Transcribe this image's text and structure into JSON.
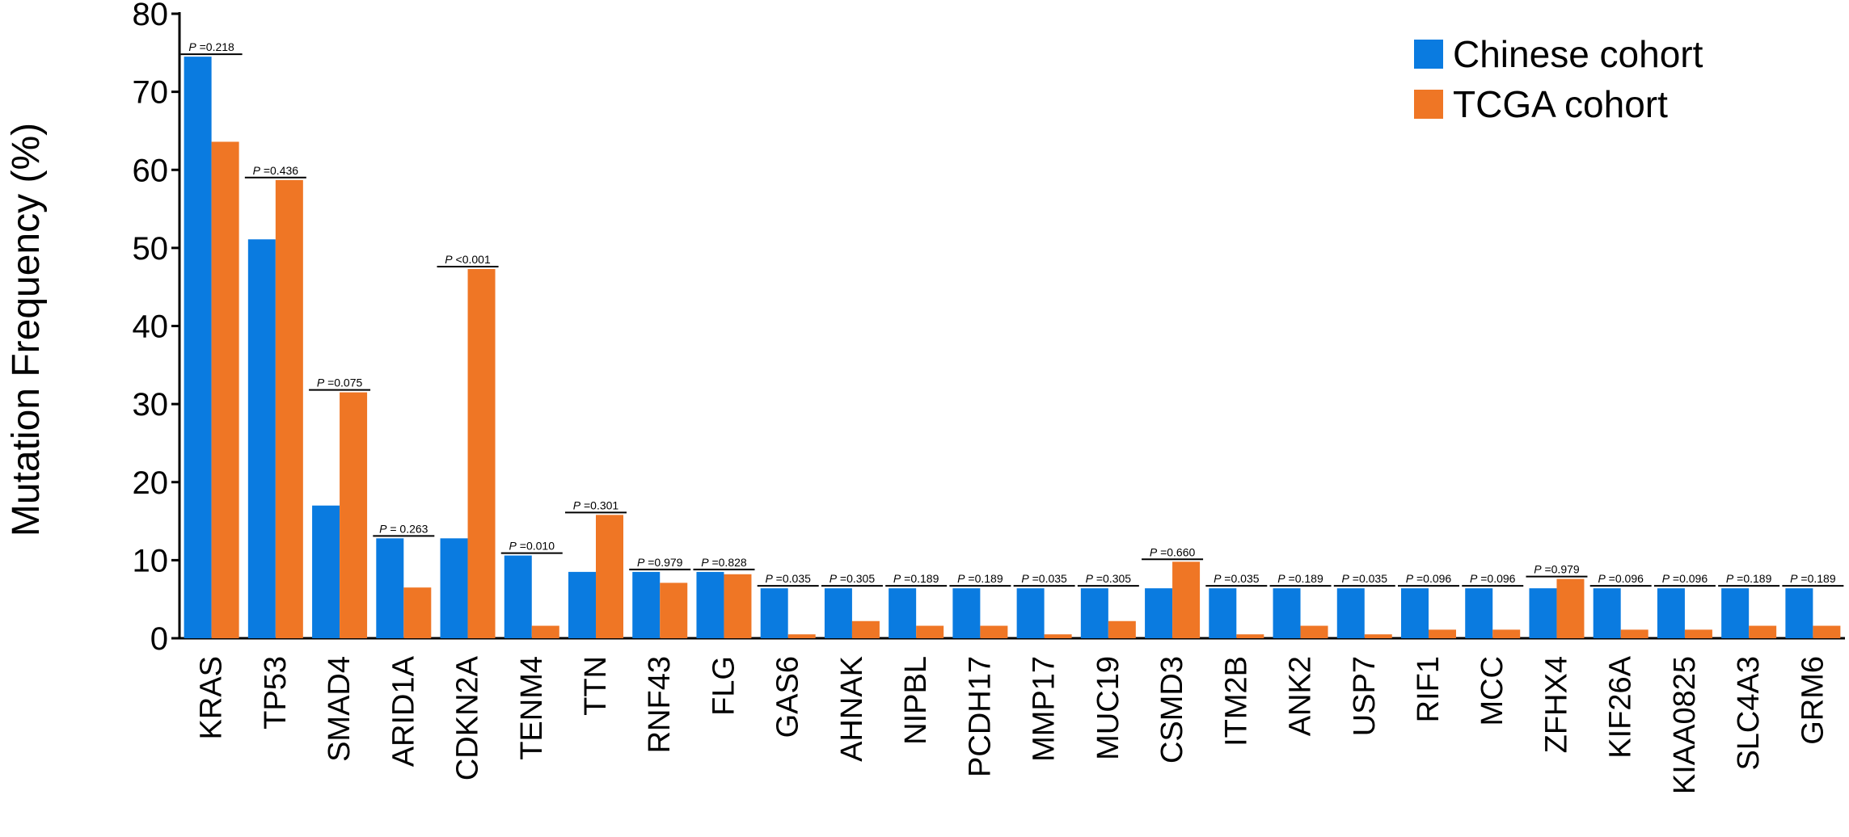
{
  "chart_data": {
    "type": "bar",
    "title": "",
    "xlabel": "",
    "ylabel": "Mutation Frequency (%)",
    "ylim": [
      0,
      80
    ],
    "yticks": [
      "0",
      "10",
      "20",
      "30",
      "40",
      "50",
      "60",
      "70",
      "80"
    ],
    "grid": false,
    "legend_position": "top-right",
    "categories": [
      "KRAS",
      "TP53",
      "SMAD4",
      "ARID1A",
      "CDKN2A",
      "TENM4",
      "TTN",
      "RNF43",
      "FLG",
      "GAS6",
      "AHNAK",
      "NIPBL",
      "PCDH17",
      "MMP17",
      "MUC19",
      "CSMD3",
      "ITM2B",
      "ANK2",
      "USP7",
      "RIF1",
      "MCC",
      "ZFHX4",
      "KIF26A",
      "KIAA0825",
      "SLC4A3",
      "GRM6"
    ],
    "series": [
      {
        "name": "Chinese cohort",
        "color": "#0A7BE0",
        "values": [
          74.5,
          51.1,
          17.0,
          12.8,
          12.8,
          10.6,
          8.5,
          8.5,
          8.5,
          6.4,
          6.4,
          6.4,
          6.4,
          6.4,
          6.4,
          6.4,
          6.4,
          6.4,
          6.4,
          6.4,
          6.4,
          6.4,
          6.4,
          6.4,
          6.4,
          6.4
        ]
      },
      {
        "name": "TCGA cohort",
        "color": "#EF7625",
        "values": [
          63.6,
          58.7,
          31.5,
          6.5,
          47.3,
          1.6,
          15.8,
          7.1,
          8.2,
          0.5,
          2.2,
          1.6,
          1.6,
          0.5,
          2.2,
          9.8,
          0.5,
          1.6,
          0.5,
          1.1,
          1.1,
          7.6,
          1.1,
          1.1,
          1.6,
          1.6
        ]
      }
    ],
    "annotations": [
      {
        "prefix": "P",
        "text": " =0.218"
      },
      {
        "prefix": "P",
        "text": " =0.436"
      },
      {
        "prefix": "P",
        "text": " =0.075"
      },
      {
        "prefix": "P",
        "text": " = 0.263"
      },
      {
        "prefix": "P",
        "text": " <0.001"
      },
      {
        "prefix": "P",
        "text": " =0.010"
      },
      {
        "prefix": "P",
        "text": " =0.301"
      },
      {
        "prefix": "P",
        "text": " =0.979"
      },
      {
        "prefix": "P",
        "text": " =0.828"
      },
      {
        "prefix": "P",
        "text": " =0.035"
      },
      {
        "prefix": "P",
        "text": " =0.305"
      },
      {
        "prefix": "P",
        "text": " =0.189"
      },
      {
        "prefix": "P",
        "text": " =0.189"
      },
      {
        "prefix": "P",
        "text": " =0.035"
      },
      {
        "prefix": "P",
        "text": " =0.305"
      },
      {
        "prefix": "P",
        "text": " =0.660"
      },
      {
        "prefix": "P",
        "text": " =0.035"
      },
      {
        "prefix": "P",
        "text": " =0.189"
      },
      {
        "prefix": "P",
        "text": " =0.035"
      },
      {
        "prefix": "P",
        "text": " =0.096"
      },
      {
        "prefix": "P",
        "text": " =0.096"
      },
      {
        "prefix": "P",
        "text": " =0.979"
      },
      {
        "prefix": "P",
        "text": " =0.096"
      },
      {
        "prefix": "P",
        "text": " =0.096"
      },
      {
        "prefix": "P",
        "text": " =0.189"
      },
      {
        "prefix": "P",
        "text": " =0.189"
      }
    ]
  }
}
